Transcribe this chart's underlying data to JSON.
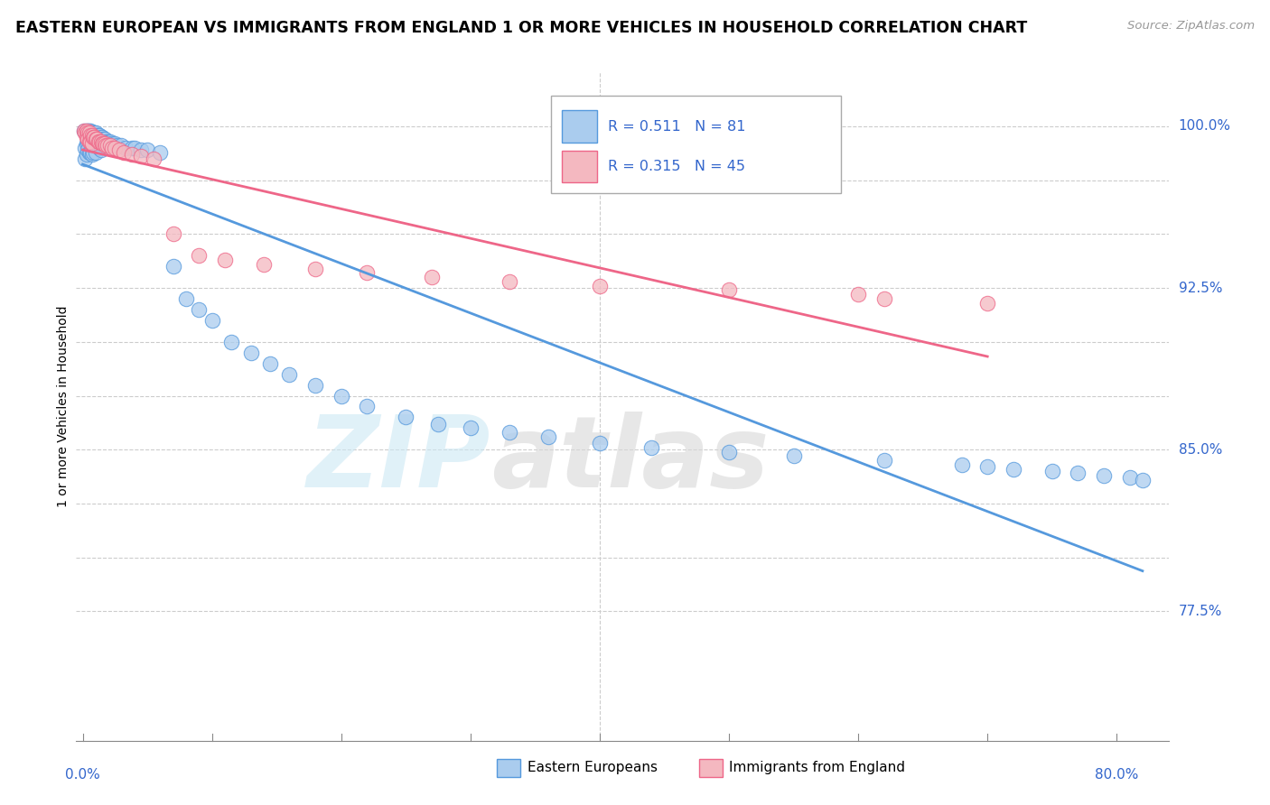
{
  "title": "EASTERN EUROPEAN VS IMMIGRANTS FROM ENGLAND 1 OR MORE VEHICLES IN HOUSEHOLD CORRELATION CHART",
  "source": "Source: ZipAtlas.com",
  "ylabel": "1 or more Vehicles in Household",
  "r_blue": 0.511,
  "n_blue": 81,
  "r_pink": 0.315,
  "n_pink": 45,
  "legend_label_blue": "Eastern Europeans",
  "legend_label_pink": "Immigrants from England",
  "blue_color": "#aaccee",
  "pink_color": "#f4b8c0",
  "line_blue": "#5599dd",
  "line_pink": "#ee6688",
  "ylim_low": 0.715,
  "ylim_high": 1.025,
  "xlim_low": -0.005,
  "xlim_high": 0.84,
  "y_gridlines": [
    0.775,
    0.8,
    0.825,
    0.85,
    0.875,
    0.9,
    0.925,
    0.95,
    0.975,
    1.0
  ],
  "y_right_labels": [
    [
      1.0,
      "100.0%"
    ],
    [
      0.925,
      "92.5%"
    ],
    [
      0.85,
      "85.0%"
    ],
    [
      0.775,
      "77.5%"
    ]
  ],
  "blue_x": [
    0.001,
    0.002,
    0.002,
    0.003,
    0.003,
    0.003,
    0.004,
    0.004,
    0.004,
    0.005,
    0.005,
    0.005,
    0.006,
    0.006,
    0.006,
    0.007,
    0.007,
    0.007,
    0.008,
    0.008,
    0.008,
    0.009,
    0.009,
    0.01,
    0.01,
    0.01,
    0.011,
    0.011,
    0.012,
    0.012,
    0.013,
    0.013,
    0.014,
    0.014,
    0.015,
    0.016,
    0.017,
    0.018,
    0.019,
    0.02,
    0.021,
    0.022,
    0.023,
    0.025,
    0.027,
    0.03,
    0.033,
    0.038,
    0.04,
    0.045,
    0.05,
    0.06,
    0.07,
    0.08,
    0.09,
    0.1,
    0.115,
    0.13,
    0.145,
    0.16,
    0.18,
    0.2,
    0.22,
    0.25,
    0.275,
    0.3,
    0.33,
    0.36,
    0.4,
    0.44,
    0.5,
    0.55,
    0.62,
    0.68,
    0.7,
    0.72,
    0.75,
    0.77,
    0.79,
    0.81,
    0.82
  ],
  "blue_y": [
    0.998,
    0.99,
    0.985,
    0.998,
    0.992,
    0.987,
    0.998,
    0.993,
    0.989,
    0.998,
    0.994,
    0.988,
    0.998,
    0.993,
    0.988,
    0.997,
    0.992,
    0.987,
    0.997,
    0.993,
    0.988,
    0.997,
    0.992,
    0.997,
    0.993,
    0.988,
    0.996,
    0.991,
    0.996,
    0.991,
    0.996,
    0.99,
    0.995,
    0.989,
    0.995,
    0.994,
    0.994,
    0.993,
    0.992,
    0.993,
    0.993,
    0.992,
    0.991,
    0.992,
    0.991,
    0.991,
    0.99,
    0.99,
    0.99,
    0.989,
    0.989,
    0.988,
    0.935,
    0.92,
    0.915,
    0.91,
    0.9,
    0.895,
    0.89,
    0.885,
    0.88,
    0.875,
    0.87,
    0.865,
    0.862,
    0.86,
    0.858,
    0.856,
    0.853,
    0.851,
    0.849,
    0.847,
    0.845,
    0.843,
    0.842,
    0.841,
    0.84,
    0.839,
    0.838,
    0.837,
    0.836
  ],
  "pink_x": [
    0.001,
    0.002,
    0.003,
    0.003,
    0.004,
    0.004,
    0.005,
    0.005,
    0.006,
    0.006,
    0.007,
    0.007,
    0.008,
    0.009,
    0.01,
    0.011,
    0.012,
    0.013,
    0.014,
    0.015,
    0.016,
    0.017,
    0.018,
    0.019,
    0.021,
    0.023,
    0.025,
    0.028,
    0.032,
    0.038,
    0.045,
    0.055,
    0.07,
    0.09,
    0.11,
    0.14,
    0.18,
    0.22,
    0.27,
    0.33,
    0.4,
    0.5,
    0.6,
    0.62,
    0.7
  ],
  "pink_y": [
    0.998,
    0.997,
    0.998,
    0.995,
    0.997,
    0.994,
    0.997,
    0.993,
    0.996,
    0.993,
    0.996,
    0.992,
    0.995,
    0.995,
    0.994,
    0.994,
    0.993,
    0.993,
    0.993,
    0.992,
    0.992,
    0.992,
    0.991,
    0.991,
    0.991,
    0.99,
    0.99,
    0.989,
    0.988,
    0.987,
    0.986,
    0.985,
    0.95,
    0.94,
    0.938,
    0.936,
    0.934,
    0.932,
    0.93,
    0.928,
    0.926,
    0.924,
    0.922,
    0.92,
    0.918
  ]
}
